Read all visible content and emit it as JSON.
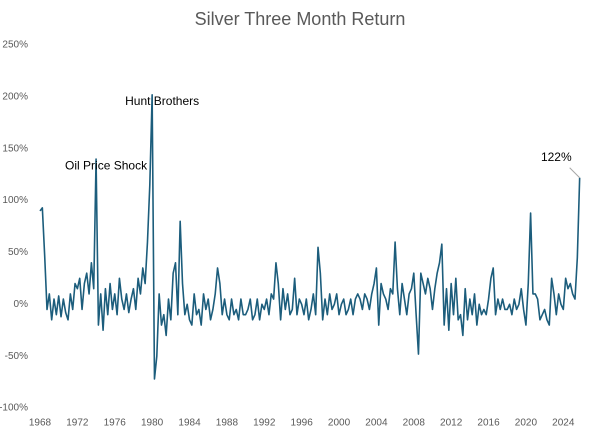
{
  "chart_data": {
    "type": "line",
    "title": "Silver Three Month Return",
    "series": [
      {
        "name": "Silver Three Month Return",
        "color": "#1c5d7c",
        "x": [
          1968,
          1968.25,
          1968.5,
          1968.75,
          1969,
          1969.25,
          1969.5,
          1969.75,
          1970,
          1970.25,
          1970.5,
          1970.75,
          1971,
          1971.25,
          1971.5,
          1971.75,
          1972,
          1972.25,
          1972.5,
          1972.75,
          1973,
          1973.25,
          1973.5,
          1973.75,
          1974,
          1974.25,
          1974.5,
          1974.75,
          1975,
          1975.25,
          1975.5,
          1975.75,
          1976,
          1976.25,
          1976.5,
          1976.75,
          1977,
          1977.25,
          1977.5,
          1977.75,
          1978,
          1978.25,
          1978.5,
          1978.75,
          1979,
          1979.25,
          1979.5,
          1979.75,
          1980,
          1980.25,
          1980.5,
          1980.75,
          1981,
          1981.25,
          1981.5,
          1981.75,
          1982,
          1982.25,
          1982.5,
          1982.75,
          1983,
          1983.25,
          1983.5,
          1983.75,
          1984,
          1984.25,
          1984.5,
          1984.75,
          1985,
          1985.25,
          1985.5,
          1985.75,
          1986,
          1986.25,
          1986.5,
          1986.75,
          1987,
          1987.25,
          1987.5,
          1987.75,
          1988,
          1988.25,
          1988.5,
          1988.75,
          1989,
          1989.25,
          1989.5,
          1989.75,
          1990,
          1990.25,
          1990.5,
          1990.75,
          1991,
          1991.25,
          1991.5,
          1991.75,
          1992,
          1992.25,
          1992.5,
          1992.75,
          1993,
          1993.25,
          1993.5,
          1993.75,
          1994,
          1994.25,
          1994.5,
          1994.75,
          1995,
          1995.25,
          1995.5,
          1995.75,
          1996,
          1996.25,
          1996.5,
          1996.75,
          1997,
          1997.25,
          1997.5,
          1997.75,
          1998,
          1998.25,
          1998.5,
          1998.75,
          1999,
          1999.25,
          1999.5,
          1999.75,
          2000,
          2000.25,
          2000.5,
          2000.75,
          2001,
          2001.25,
          2001.5,
          2001.75,
          2002,
          2002.25,
          2002.5,
          2002.75,
          2003,
          2003.25,
          2003.5,
          2003.75,
          2004,
          2004.25,
          2004.5,
          2004.75,
          2005,
          2005.25,
          2005.5,
          2005.75,
          2006,
          2006.25,
          2006.5,
          2006.75,
          2007,
          2007.25,
          2007.5,
          2007.75,
          2008,
          2008.25,
          2008.5,
          2008.75,
          2009,
          2009.25,
          2009.5,
          2009.75,
          2010,
          2010.25,
          2010.5,
          2010.75,
          2011,
          2011.25,
          2011.5,
          2011.75,
          2012,
          2012.25,
          2012.5,
          2012.75,
          2013,
          2013.25,
          2013.5,
          2013.75,
          2014,
          2014.25,
          2014.5,
          2014.75,
          2015,
          2015.25,
          2015.5,
          2015.75,
          2016,
          2016.25,
          2016.5,
          2016.75,
          2017,
          2017.25,
          2017.5,
          2017.75,
          2018,
          2018.25,
          2018.5,
          2018.75,
          2019,
          2019.25,
          2019.5,
          2019.75,
          2020,
          2020.25,
          2020.5,
          2020.75,
          2021,
          2021.25,
          2021.5,
          2021.75,
          2022,
          2022.25,
          2022.5,
          2022.75,
          2023,
          2023.25,
          2023.5,
          2023.75,
          2024,
          2024.25,
          2024.5,
          2024.75,
          2025,
          2025.25,
          2025.5,
          2025.75
        ],
        "values": [
          90,
          93,
          47,
          -5,
          10,
          -15,
          5,
          -10,
          8,
          -12,
          5,
          -8,
          -15,
          10,
          -5,
          20,
          15,
          25,
          -5,
          20,
          30,
          10,
          40,
          15,
          140,
          -20,
          10,
          -25,
          15,
          -10,
          20,
          -5,
          10,
          -10,
          25,
          5,
          -5,
          10,
          -8,
          5,
          15,
          -5,
          25,
          10,
          35,
          20,
          60,
          115,
          202,
          -72,
          -50,
          10,
          -20,
          -10,
          -30,
          5,
          -15,
          30,
          40,
          -10,
          80,
          20,
          -10,
          0,
          -15,
          -20,
          10,
          -10,
          -5,
          -20,
          10,
          -5,
          5,
          -15,
          -5,
          10,
          35,
          20,
          -10,
          5,
          -10,
          -15,
          5,
          -10,
          -5,
          -15,
          5,
          -10,
          -10,
          -5,
          5,
          -15,
          -10,
          5,
          -15,
          0,
          -5,
          5,
          -10,
          10,
          5,
          40,
          20,
          -15,
          15,
          -5,
          10,
          -10,
          -5,
          25,
          -10,
          5,
          0,
          -10,
          5,
          -15,
          -5,
          10,
          -10,
          55,
          30,
          -15,
          5,
          -10,
          10,
          -5,
          0,
          10,
          -10,
          0,
          5,
          -10,
          -5,
          5,
          -10,
          5,
          10,
          5,
          -5,
          10,
          5,
          -5,
          10,
          20,
          35,
          -20,
          20,
          10,
          5,
          -5,
          15,
          10,
          60,
          15,
          -10,
          20,
          5,
          -10,
          10,
          15,
          30,
          -10,
          -48,
          30,
          20,
          10,
          25,
          15,
          -5,
          15,
          30,
          40,
          58,
          -20,
          15,
          -25,
          20,
          -10,
          25,
          -15,
          -10,
          -30,
          15,
          -15,
          5,
          -10,
          10,
          -20,
          0,
          -10,
          -5,
          -10,
          5,
          25,
          35,
          -10,
          5,
          -5,
          5,
          -5,
          -5,
          0,
          -10,
          5,
          -5,
          0,
          15,
          -5,
          -20,
          20,
          88,
          10,
          10,
          5,
          -15,
          -10,
          -5,
          -15,
          -20,
          25,
          10,
          -10,
          10,
          0,
          -5,
          25,
          15,
          20,
          10,
          5,
          45,
          122
        ]
      }
    ],
    "xlim": [
      1968,
      2026
    ],
    "xticks": [
      1968,
      1972,
      1976,
      1980,
      1984,
      1988,
      1992,
      1996,
      2000,
      2004,
      2008,
      2012,
      2016,
      2020,
      2024
    ],
    "ylim": [
      -100,
      250
    ],
    "yticks": [
      {
        "value": -100,
        "label": "-100%"
      },
      {
        "value": -50,
        "label": "-50%"
      },
      {
        "value": 0,
        "label": "0%"
      },
      {
        "value": 50,
        "label": "50%"
      },
      {
        "value": 100,
        "label": "100%"
      },
      {
        "value": 150,
        "label": "150%"
      },
      {
        "value": 200,
        "label": "200%"
      },
      {
        "value": 250,
        "label": "250%"
      }
    ],
    "grid": false,
    "annotations": [
      {
        "text": "Oil Price Shock",
        "x": 1974,
        "y": 140
      },
      {
        "text": "Hunt Brothers",
        "x": 1980,
        "y": 202
      },
      {
        "text": "122%",
        "x": 2025.75,
        "y": 122
      }
    ]
  }
}
